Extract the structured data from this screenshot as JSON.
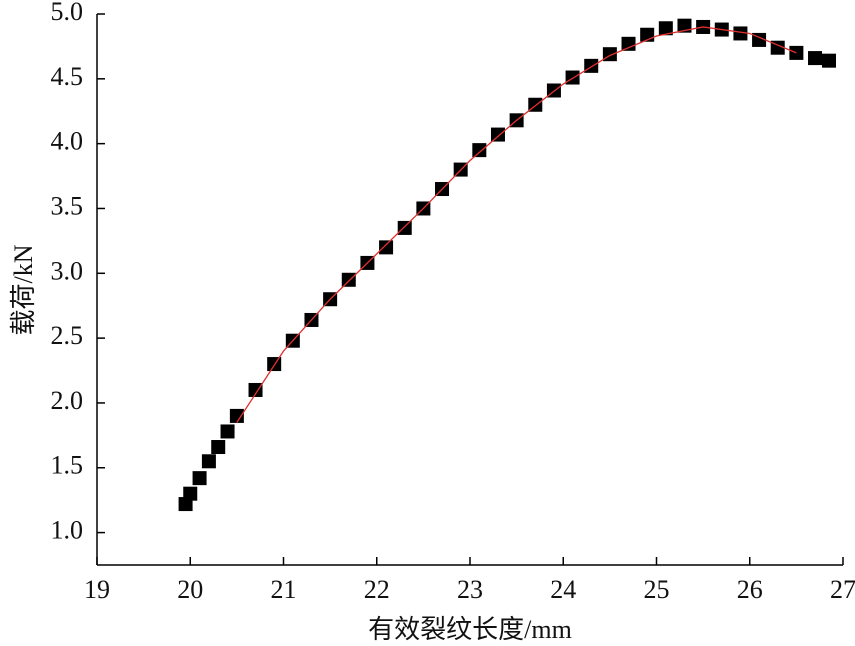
{
  "chart_data": {
    "type": "scatter",
    "xlabel": "有效裂纹长度/mm",
    "ylabel": "载荷/kN",
    "xlim": [
      19,
      27
    ],
    "xticks": [
      19,
      20,
      21,
      22,
      23,
      24,
      25,
      26,
      27
    ],
    "ylim": [
      0.75,
      5.0
    ],
    "yticks": [
      {
        "value": 1,
        "label": "1.0"
      },
      {
        "value": 1.5,
        "label": "1.5"
      },
      {
        "value": 2,
        "label": "2.0"
      },
      {
        "value": 2.5,
        "label": "2.5"
      },
      {
        "value": 3,
        "label": "3.0"
      },
      {
        "value": 3.5,
        "label": "3.5"
      },
      {
        "value": 4,
        "label": "4.0"
      },
      {
        "value": 4.5,
        "label": "4.5"
      },
      {
        "value": 5,
        "label": "5.0"
      }
    ],
    "series": [
      {
        "type": "scatter",
        "color": "#000000",
        "x": [
          19.95,
          20.0,
          20.1,
          20.2,
          20.3,
          20.4,
          20.5,
          20.7,
          20.9,
          21.1,
          21.3,
          21.5,
          21.7,
          21.9,
          22.1,
          22.3,
          22.5,
          22.7,
          22.9,
          23.1,
          23.3,
          23.5,
          23.7,
          23.9,
          24.1,
          24.3,
          24.5,
          24.7,
          24.9,
          25.1,
          25.3,
          25.5,
          25.7,
          25.9,
          26.1,
          26.3,
          26.5,
          26.7,
          26.85
        ],
        "values": [
          1.22,
          1.3,
          1.42,
          1.55,
          1.66,
          1.78,
          1.9,
          2.1,
          2.3,
          2.48,
          2.64,
          2.8,
          2.95,
          3.08,
          3.2,
          3.35,
          3.5,
          3.65,
          3.8,
          3.95,
          4.07,
          4.18,
          4.3,
          4.41,
          4.51,
          4.6,
          4.69,
          4.77,
          4.84,
          4.89,
          4.91,
          4.9,
          4.88,
          4.85,
          4.8,
          4.74,
          4.7,
          4.66,
          4.64
        ]
      },
      {
        "type": "line",
        "color": "#e03030",
        "x": [
          20.5,
          21,
          21.5,
          22,
          22.5,
          23,
          23.5,
          24,
          24.5,
          25,
          25.5,
          26,
          26.5
        ],
        "values": [
          1.85,
          2.4,
          2.8,
          3.15,
          3.5,
          3.87,
          4.18,
          4.46,
          4.68,
          4.83,
          4.9,
          4.85,
          4.7
        ]
      }
    ]
  }
}
